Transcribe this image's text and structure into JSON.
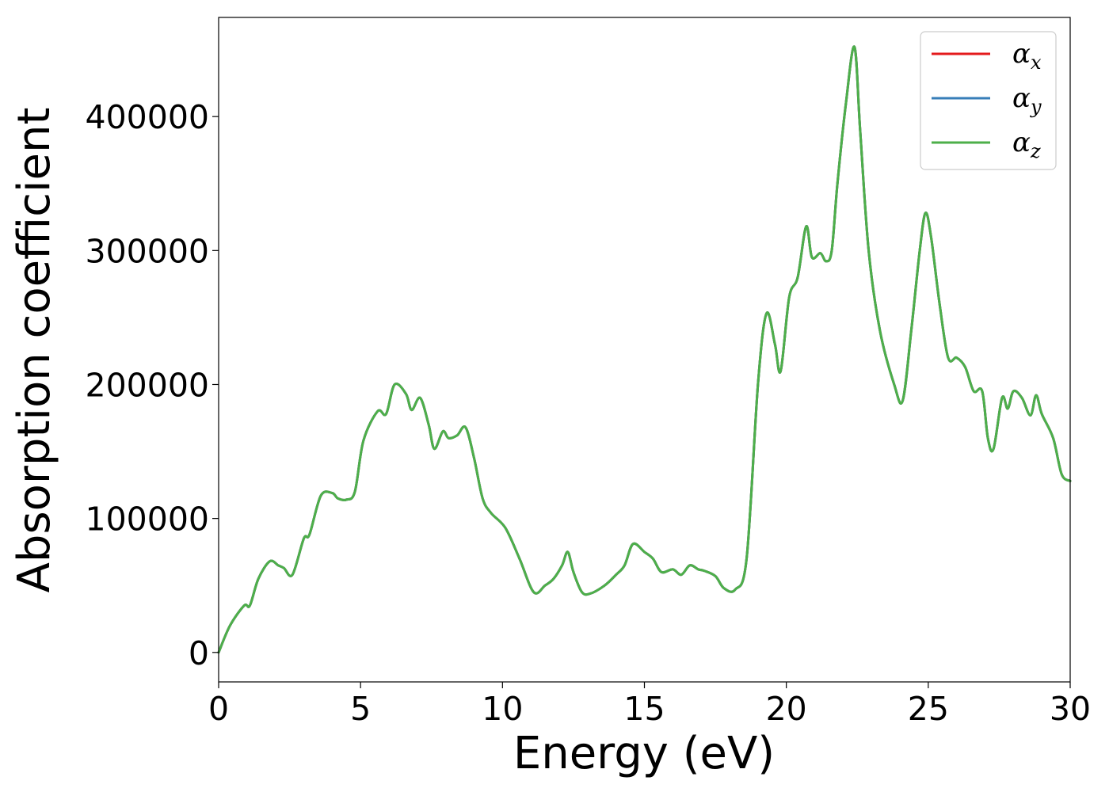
{
  "chart_data": {
    "type": "line",
    "xlabel": "Energy (eV)",
    "ylabel": "Absorption coefficient",
    "xlim": [
      0,
      30
    ],
    "ylim": [
      -22000,
      474000
    ],
    "xticks": [
      0,
      5,
      10,
      15,
      20,
      25,
      30
    ],
    "yticks": [
      0,
      100000,
      200000,
      300000,
      400000
    ],
    "grid": false,
    "legend_position": "top-right",
    "series": [
      {
        "name": "α_x",
        "color": "#e41a1c",
        "x": [
          0,
          0.4,
          0.9,
          1.1,
          1.4,
          1.8,
          2.1,
          2.3,
          2.6,
          3.0,
          3.2,
          3.6,
          4.0,
          4.2,
          4.5,
          4.8,
          5.1,
          5.6,
          5.9,
          6.2,
          6.6,
          6.8,
          7.1,
          7.4,
          7.6,
          7.9,
          8.1,
          8.4,
          8.7,
          9.0,
          9.3,
          9.6,
          10.1,
          10.6,
          11.1,
          11.5,
          11.8,
          12.1,
          12.3,
          12.5,
          12.8,
          13.1,
          13.6,
          14.0,
          14.3,
          14.6,
          15.0,
          15.3,
          15.6,
          16.0,
          16.3,
          16.6,
          16.9,
          17.1,
          17.5,
          17.8,
          18.2,
          18.6,
          19.0,
          19.3,
          19.6,
          19.8,
          20.1,
          20.4,
          20.7,
          20.9,
          21.2,
          21.4,
          21.6,
          21.8,
          22.1,
          22.4,
          22.6,
          22.9,
          23.3,
          23.8,
          24.1,
          24.4,
          24.7,
          24.9,
          25.1,
          25.4,
          25.7,
          26.0,
          26.3,
          26.6,
          26.9,
          27.1,
          27.3,
          27.6,
          27.8,
          28.0,
          28.3,
          28.6,
          28.8,
          29.0,
          29.4,
          29.7,
          30.0
        ],
        "y": [
          0,
          20000,
          35000,
          35000,
          55000,
          68000,
          65000,
          63000,
          58000,
          85000,
          88000,
          117000,
          119000,
          115000,
          114000,
          120000,
          158000,
          180000,
          178000,
          200000,
          193000,
          181000,
          190000,
          170000,
          152000,
          165000,
          160000,
          162000,
          168000,
          145000,
          115000,
          104000,
          93000,
          70000,
          45000,
          50000,
          55000,
          65000,
          75000,
          60000,
          45000,
          44000,
          50000,
          58000,
          65000,
          81000,
          75000,
          70000,
          60000,
          62000,
          58000,
          65000,
          62000,
          61000,
          57000,
          48000,
          47000,
          70000,
          200000,
          253000,
          230000,
          210000,
          265000,
          280000,
          318000,
          295000,
          298000,
          292000,
          300000,
          350000,
          410000,
          452000,
          390000,
          300000,
          240000,
          200000,
          188000,
          240000,
          300000,
          328000,
          310000,
          260000,
          220000,
          220000,
          213000,
          195000,
          195000,
          160000,
          152000,
          190000,
          182000,
          195000,
          190000,
          177000,
          192000,
          178000,
          160000,
          133000,
          128000
        ]
      },
      {
        "name": "α_y",
        "color": "#377eb8",
        "x": [
          0,
          0.4,
          0.9,
          1.1,
          1.4,
          1.8,
          2.1,
          2.3,
          2.6,
          3.0,
          3.2,
          3.6,
          4.0,
          4.2,
          4.5,
          4.8,
          5.1,
          5.6,
          5.9,
          6.2,
          6.6,
          6.8,
          7.1,
          7.4,
          7.6,
          7.9,
          8.1,
          8.4,
          8.7,
          9.0,
          9.3,
          9.6,
          10.1,
          10.6,
          11.1,
          11.5,
          11.8,
          12.1,
          12.3,
          12.5,
          12.8,
          13.1,
          13.6,
          14.0,
          14.3,
          14.6,
          15.0,
          15.3,
          15.6,
          16.0,
          16.3,
          16.6,
          16.9,
          17.1,
          17.5,
          17.8,
          18.2,
          18.6,
          19.0,
          19.3,
          19.6,
          19.8,
          20.1,
          20.4,
          20.7,
          20.9,
          21.2,
          21.4,
          21.6,
          21.8,
          22.1,
          22.4,
          22.6,
          22.9,
          23.3,
          23.8,
          24.1,
          24.4,
          24.7,
          24.9,
          25.1,
          25.4,
          25.7,
          26.0,
          26.3,
          26.6,
          26.9,
          27.1,
          27.3,
          27.6,
          27.8,
          28.0,
          28.3,
          28.6,
          28.8,
          29.0,
          29.4,
          29.7,
          30.0
        ],
        "y": [
          0,
          20000,
          35000,
          35000,
          55000,
          68000,
          65000,
          63000,
          58000,
          85000,
          88000,
          117000,
          119000,
          115000,
          114000,
          120000,
          158000,
          180000,
          178000,
          200000,
          193000,
          181000,
          190000,
          170000,
          152000,
          165000,
          160000,
          162000,
          168000,
          145000,
          115000,
          104000,
          93000,
          70000,
          45000,
          50000,
          55000,
          65000,
          75000,
          60000,
          45000,
          44000,
          50000,
          58000,
          65000,
          81000,
          75000,
          70000,
          60000,
          62000,
          58000,
          65000,
          62000,
          61000,
          57000,
          48000,
          47000,
          70000,
          200000,
          253000,
          230000,
          210000,
          265000,
          280000,
          318000,
          295000,
          298000,
          292000,
          300000,
          350000,
          410000,
          452000,
          390000,
          300000,
          240000,
          200000,
          188000,
          240000,
          300000,
          328000,
          310000,
          260000,
          220000,
          220000,
          213000,
          195000,
          195000,
          160000,
          152000,
          190000,
          182000,
          195000,
          190000,
          177000,
          192000,
          178000,
          160000,
          133000,
          128000
        ]
      },
      {
        "name": "α_z",
        "color": "#4daf4a",
        "x": [
          0,
          0.4,
          0.9,
          1.1,
          1.4,
          1.8,
          2.1,
          2.3,
          2.6,
          3.0,
          3.2,
          3.6,
          4.0,
          4.2,
          4.5,
          4.8,
          5.1,
          5.6,
          5.9,
          6.2,
          6.6,
          6.8,
          7.1,
          7.4,
          7.6,
          7.9,
          8.1,
          8.4,
          8.7,
          9.0,
          9.3,
          9.6,
          10.1,
          10.6,
          11.1,
          11.5,
          11.8,
          12.1,
          12.3,
          12.5,
          12.8,
          13.1,
          13.6,
          14.0,
          14.3,
          14.6,
          15.0,
          15.3,
          15.6,
          16.0,
          16.3,
          16.6,
          16.9,
          17.1,
          17.5,
          17.8,
          18.2,
          18.6,
          19.0,
          19.3,
          19.6,
          19.8,
          20.1,
          20.4,
          20.7,
          20.9,
          21.2,
          21.4,
          21.6,
          21.8,
          22.1,
          22.4,
          22.6,
          22.9,
          23.3,
          23.8,
          24.1,
          24.4,
          24.7,
          24.9,
          25.1,
          25.4,
          25.7,
          26.0,
          26.3,
          26.6,
          26.9,
          27.1,
          27.3,
          27.6,
          27.8,
          28.0,
          28.3,
          28.6,
          28.8,
          29.0,
          29.4,
          29.7,
          30.0
        ],
        "y": [
          0,
          20000,
          35000,
          35000,
          55000,
          68000,
          65000,
          63000,
          58000,
          85000,
          88000,
          117000,
          119000,
          115000,
          114000,
          120000,
          158000,
          180000,
          178000,
          200000,
          193000,
          181000,
          190000,
          170000,
          152000,
          165000,
          160000,
          162000,
          168000,
          145000,
          115000,
          104000,
          93000,
          70000,
          45000,
          50000,
          55000,
          65000,
          75000,
          60000,
          45000,
          44000,
          50000,
          58000,
          65000,
          81000,
          75000,
          70000,
          60000,
          62000,
          58000,
          65000,
          62000,
          61000,
          57000,
          48000,
          47000,
          70000,
          200000,
          253000,
          230000,
          210000,
          265000,
          280000,
          318000,
          295000,
          298000,
          292000,
          300000,
          350000,
          410000,
          452000,
          390000,
          300000,
          240000,
          200000,
          188000,
          240000,
          300000,
          328000,
          310000,
          260000,
          220000,
          220000,
          213000,
          195000,
          195000,
          160000,
          152000,
          190000,
          182000,
          195000,
          190000,
          177000,
          192000,
          178000,
          160000,
          133000,
          128000
        ]
      }
    ],
    "legend": [
      {
        "symbol": "α",
        "sub": "x",
        "color": "#e41a1c"
      },
      {
        "symbol": "α",
        "sub": "y",
        "color": "#377eb8"
      },
      {
        "symbol": "α",
        "sub": "z",
        "color": "#4daf4a"
      }
    ]
  }
}
